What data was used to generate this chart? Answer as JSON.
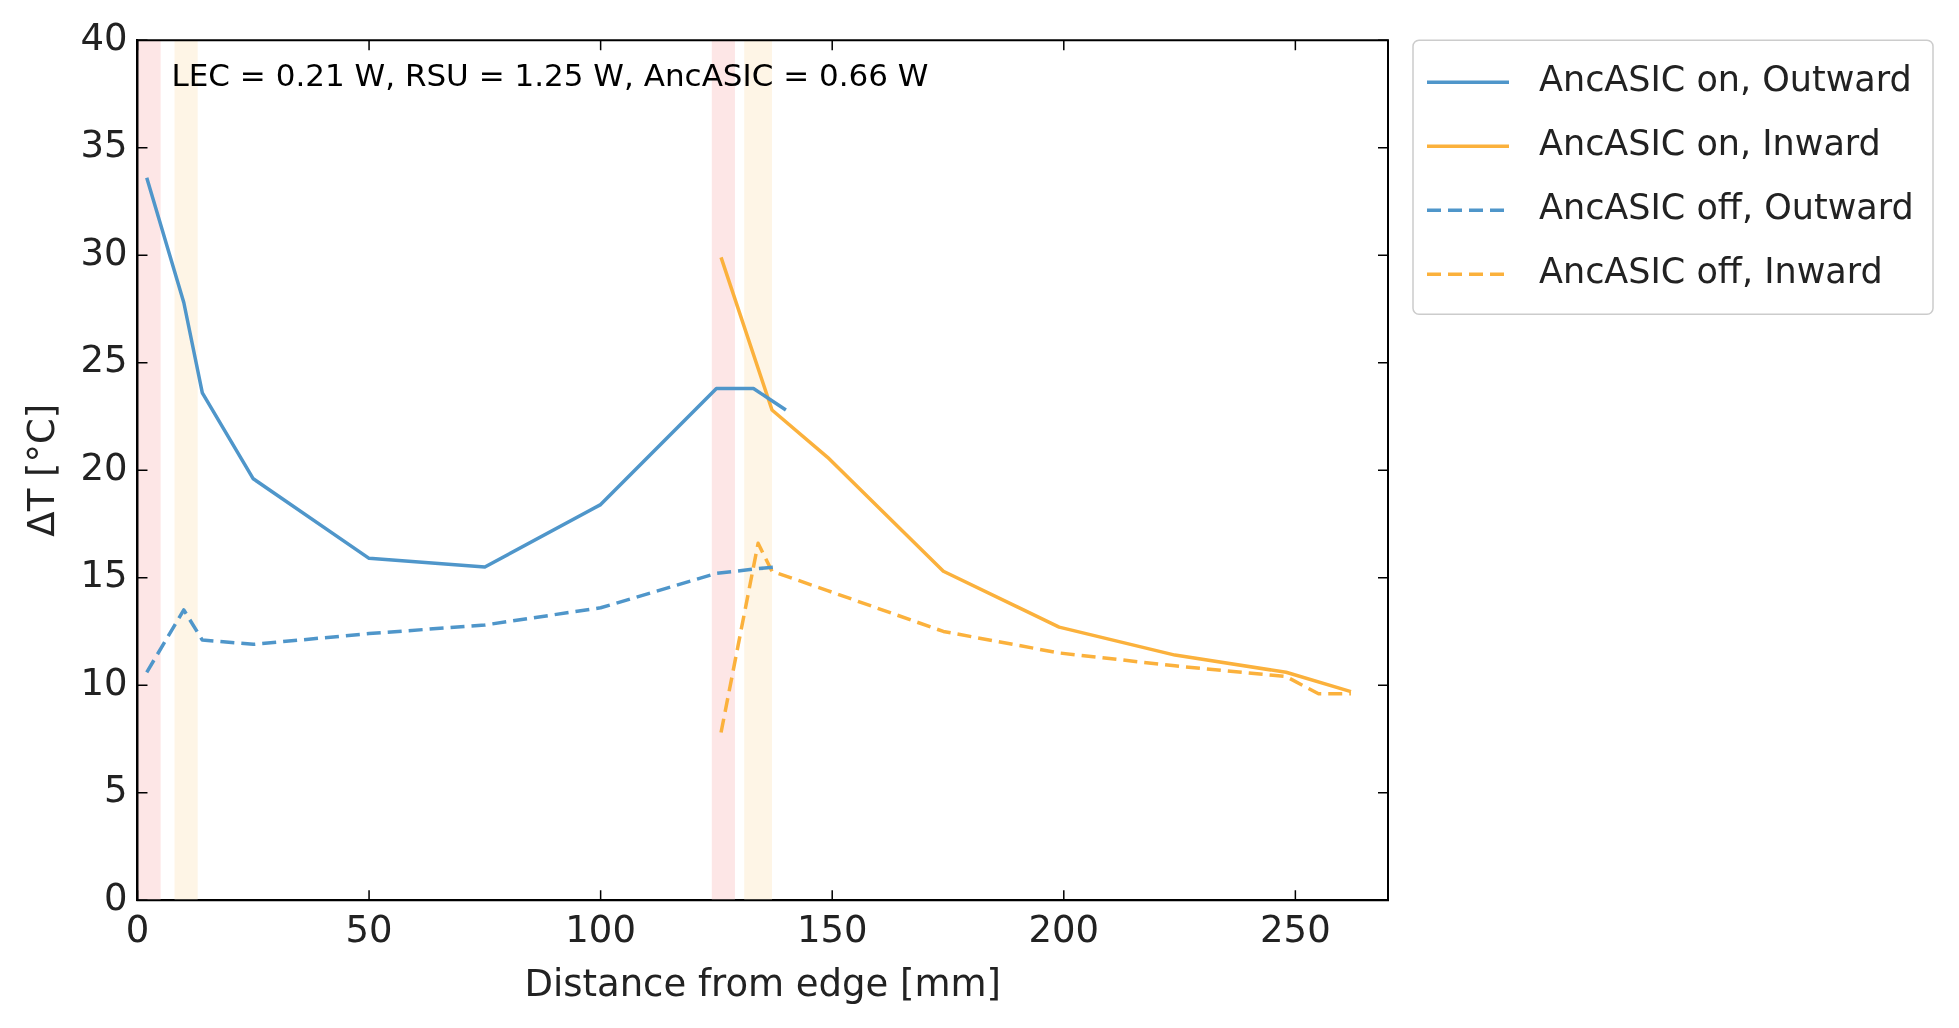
{
  "chart_data": {
    "type": "line",
    "xlabel": "Distance from edge [mm]",
    "ylabel": "ΔT [°C]",
    "xlim": [
      0,
      270
    ],
    "xticks": [
      0,
      50,
      100,
      150,
      200,
      250
    ],
    "ylim": [
      0,
      40
    ],
    "yticks": [
      0,
      5,
      10,
      15,
      20,
      25,
      30,
      35,
      40
    ],
    "legend": "top right",
    "annotations": [
      "LEC = 0.21 W, RSU = 1.25 W, AncASIC = 0.66 W"
    ],
    "bands": [
      {
        "axis": "x",
        "from": 0,
        "to": 5,
        "color": "#fde6e6"
      },
      {
        "axis": "x",
        "from": 8,
        "to": 13,
        "color": "#fef5e6"
      },
      {
        "axis": "x",
        "from": 124,
        "to": 129,
        "color": "#fde6e6"
      },
      {
        "axis": "x",
        "from": 131,
        "to": 137,
        "color": "#fef5e6"
      }
    ],
    "series": [
      {
        "name": "AncASIC on, Outward",
        "color": "#4f96ca",
        "line_style": "solid",
        "x": [
          2,
          10,
          14,
          25,
          50,
          75,
          100,
          125,
          133,
          140
        ],
        "values": [
          33.6,
          27.8,
          23.6,
          19.6,
          15.9,
          15.5,
          18.4,
          23.8,
          23.8,
          22.8
        ]
      },
      {
        "name": "AncASIC on, Inward",
        "color": "#fbb13c",
        "line_style": "solid",
        "x": [
          126,
          137,
          149,
          174,
          199,
          224,
          248,
          262
        ],
        "values": [
          29.9,
          22.8,
          20.6,
          15.3,
          12.7,
          11.4,
          10.6,
          9.7
        ]
      },
      {
        "name": "AncASIC off, Outward",
        "color": "#4f96ca",
        "line_style": "dashed",
        "x": [
          2,
          10,
          14,
          25,
          50,
          75,
          100,
          125,
          133,
          138
        ],
        "values": [
          10.6,
          13.5,
          12.1,
          11.9,
          12.4,
          12.8,
          13.6,
          15.2,
          15.4,
          15.5
        ]
      },
      {
        "name": "AncASIC off, Inward",
        "color": "#fbb13c",
        "line_style": "dashed",
        "x": [
          126,
          134,
          137,
          149,
          174,
          199,
          224,
          248,
          255,
          262
        ],
        "values": [
          7.8,
          16.6,
          15.3,
          14.4,
          12.5,
          11.5,
          10.9,
          10.4,
          9.6,
          9.6
        ]
      }
    ]
  }
}
